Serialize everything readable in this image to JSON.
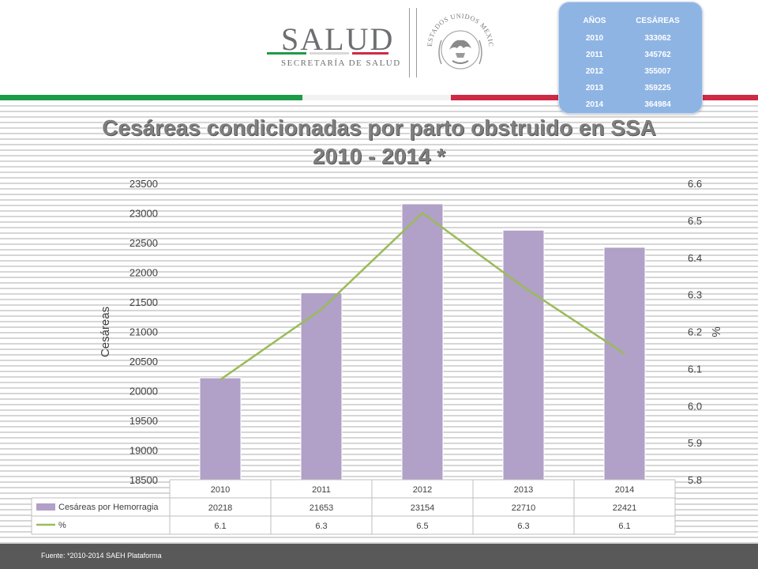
{
  "header": {
    "logo_word": "SALUD",
    "logo_sub": "SECRETARÍA DE SALUD",
    "seal_icon": "mexican-eagle-seal-icon",
    "seal_text": "ESTADOS UNIDOS MEXICANOS"
  },
  "years_box": {
    "col1_header": "AÑOS",
    "col2_header": "CESÁREAS",
    "rows": [
      {
        "year": "2010",
        "value": "333062"
      },
      {
        "year": "2011",
        "value": "345762"
      },
      {
        "year": "2012",
        "value": "355007"
      },
      {
        "year": "2013",
        "value": "359225"
      },
      {
        "year": "2014",
        "value": "364984"
      }
    ]
  },
  "title_line1": "Cesáreas condicionadas por parto obstruido en SSA",
  "title_line2": "2010 - 2014 *",
  "footer": "Fuente: *2010-2014 SAEH Plataforma",
  "colors": {
    "bar": "#b1a0c7",
    "line": "#9bbb59",
    "flag_green": "#1e9b48",
    "flag_red": "#cf2a45"
  },
  "chart_data": {
    "type": "bar",
    "categories": [
      "2010",
      "2011",
      "2012",
      "2013",
      "2014"
    ],
    "ylabel": "Cesáreas",
    "y2label": "%",
    "ylim": [
      18500,
      23500
    ],
    "yticks": [
      "18500",
      "19000",
      "19500",
      "20000",
      "20500",
      "21000",
      "21500",
      "22000",
      "22500",
      "23000",
      "23500"
    ],
    "y2lim": [
      5.8,
      6.6
    ],
    "y2ticks": [
      "5.8",
      "5.9",
      "6.0",
      "6.1",
      "6.2",
      "6.3",
      "6.4",
      "6.5",
      "6.6"
    ],
    "series": [
      {
        "name": "Cesáreas por Hemorragia",
        "type": "bar",
        "axis": "left",
        "values": [
          20218,
          21653,
          23154,
          22710,
          22421
        ],
        "labels": [
          "20218",
          "21653",
          "23154",
          "22710",
          "22421"
        ]
      },
      {
        "name": "%",
        "type": "line",
        "axis": "right",
        "values": [
          6.07,
          6.26,
          6.52,
          6.32,
          6.14
        ],
        "labels": [
          "6.1",
          "6.3",
          "6.5",
          "6.3",
          "6.1"
        ]
      }
    ],
    "grid": false,
    "legend": "data-table"
  }
}
